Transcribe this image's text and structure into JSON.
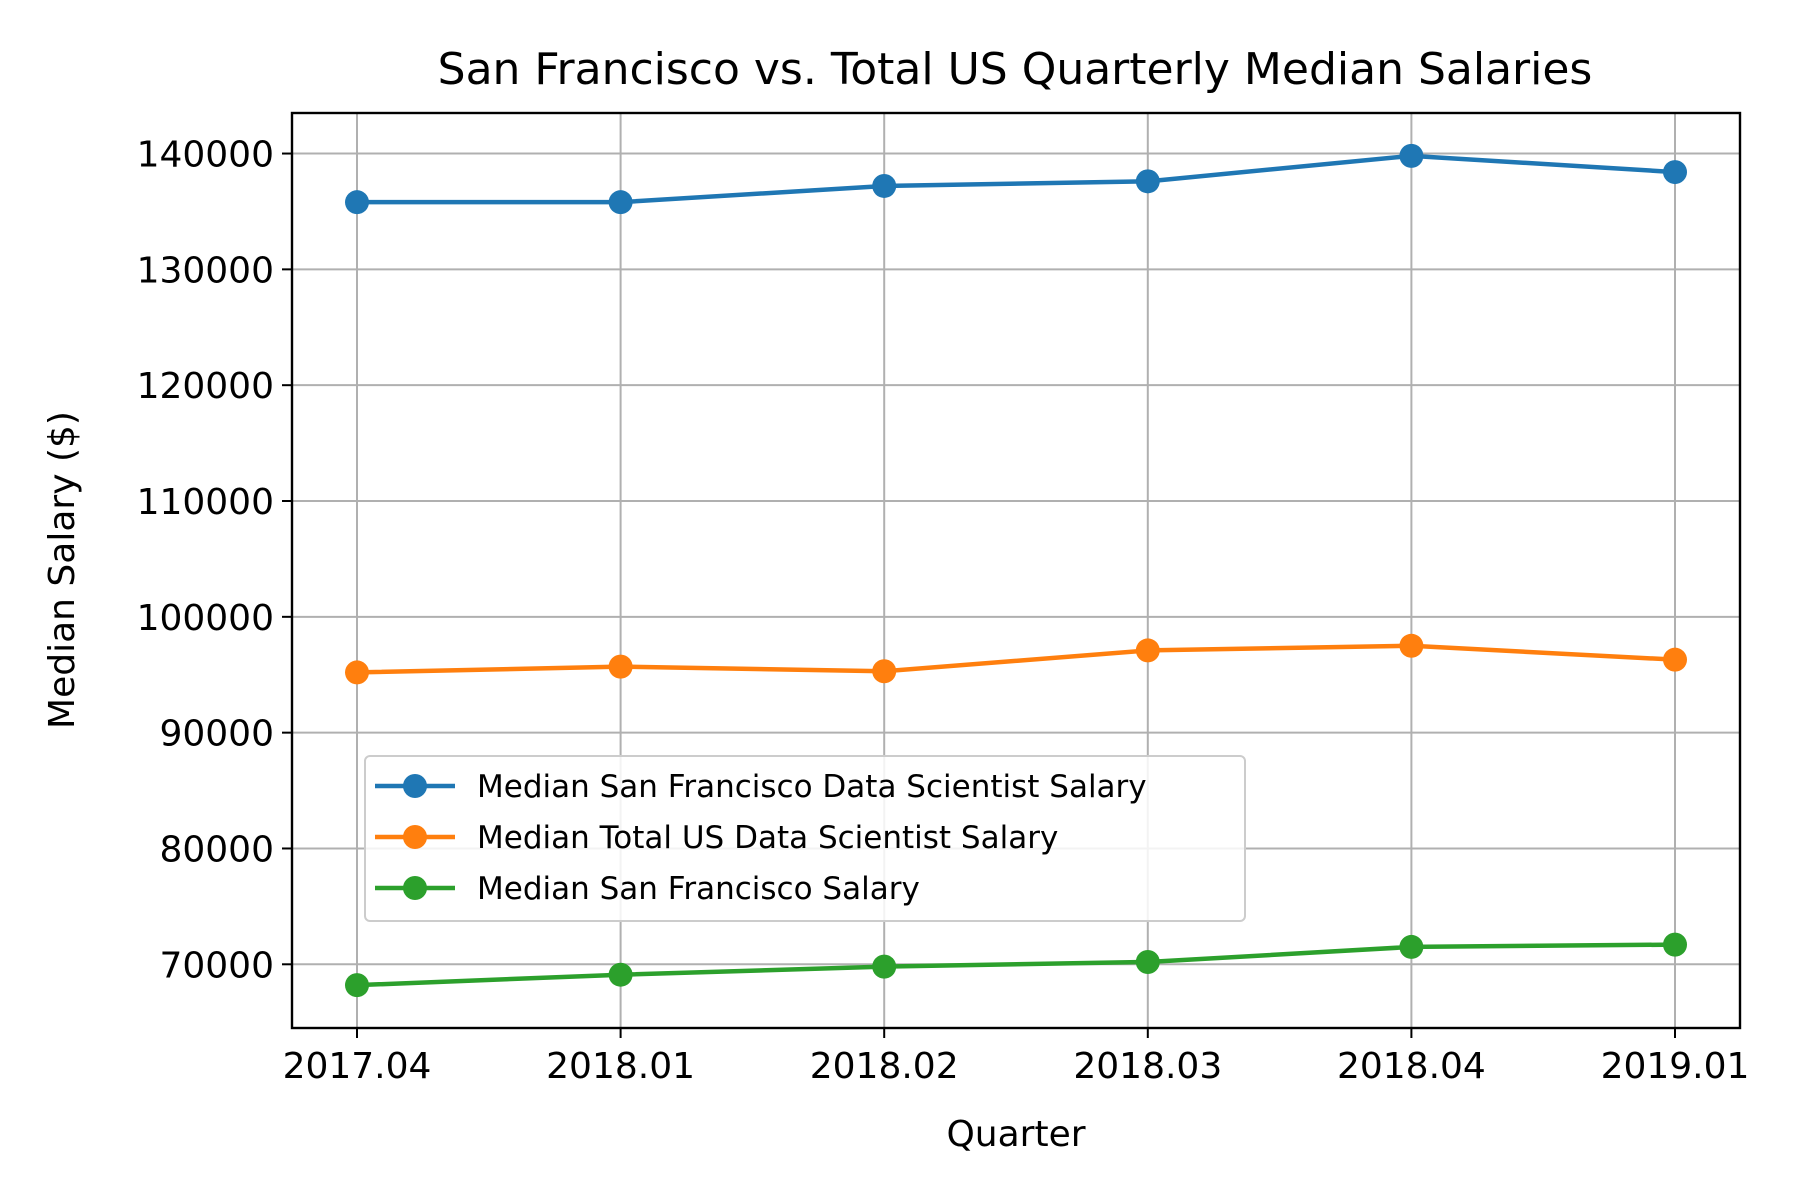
{
  "chart_data": {
    "type": "line",
    "title": "San Francisco vs. Total US Quarterly Median Salaries",
    "xlabel": "Quarter",
    "ylabel": "Median Salary ($)",
    "categories": [
      "2017.04",
      "2018.01",
      "2018.02",
      "2018.03",
      "2018.04",
      "2019.01"
    ],
    "ylim": [
      64500,
      143500
    ],
    "yticks": [
      70000,
      80000,
      90000,
      100000,
      110000,
      120000,
      130000,
      140000
    ],
    "grid": true,
    "legend_position": "center-left",
    "series": [
      {
        "name": "Median San Francisco Data Scientist Salary",
        "color": "#1f77b4",
        "values": [
          135800,
          135800,
          137200,
          137600,
          139800,
          138400
        ]
      },
      {
        "name": "Median Total US Data Scientist Salary",
        "color": "#ff7f0e",
        "values": [
          95200,
          95700,
          95300,
          97100,
          97500,
          96300
        ]
      },
      {
        "name": "Median San Francisco Salary",
        "color": "#2ca02c",
        "values": [
          68200,
          69100,
          69800,
          70200,
          71500,
          71700
        ]
      }
    ]
  }
}
